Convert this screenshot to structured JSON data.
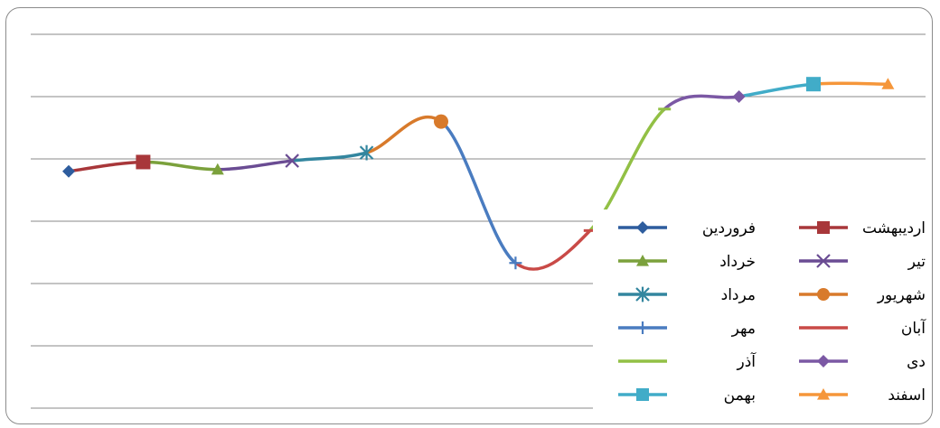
{
  "chart_data": {
    "type": "line",
    "smooth": true,
    "grid": true,
    "legend_position": "bottom-right",
    "ylim": [
      0,
      6
    ],
    "points": [
      {
        "name": "فروردین",
        "y": 3.8,
        "color": "#2E5D9E",
        "marker": "diamond"
      },
      {
        "name": "اردیبهشت",
        "y": 3.95,
        "color": "#A8373A",
        "marker": "square"
      },
      {
        "name": "خرداد",
        "y": 3.83,
        "color": "#7BA13C",
        "marker": "triangle"
      },
      {
        "name": "تیر",
        "y": 3.97,
        "color": "#6A4C93",
        "marker": "x"
      },
      {
        "name": "مرداد",
        "y": 4.1,
        "color": "#33869F",
        "marker": "asterisk"
      },
      {
        "name": "شهریور",
        "y": 4.6,
        "color": "#D87A2B",
        "marker": "circle"
      },
      {
        "name": "مهر",
        "y": 2.33,
        "color": "#4A7CC0",
        "marker": "plus"
      },
      {
        "name": "آبان",
        "y": 2.85,
        "color": "#C94A47",
        "marker": "dash"
      },
      {
        "name": "آذر",
        "y": 4.8,
        "color": "#92C045",
        "marker": "dash"
      },
      {
        "name": "دی",
        "y": 5.0,
        "color": "#7B58A4",
        "marker": "diamond"
      },
      {
        "name": "بهمن",
        "y": 5.2,
        "color": "#41ACC8",
        "marker": "square"
      },
      {
        "name": "اسفند",
        "y": 5.2,
        "color": "#F5963A",
        "marker": "triangle"
      }
    ]
  }
}
